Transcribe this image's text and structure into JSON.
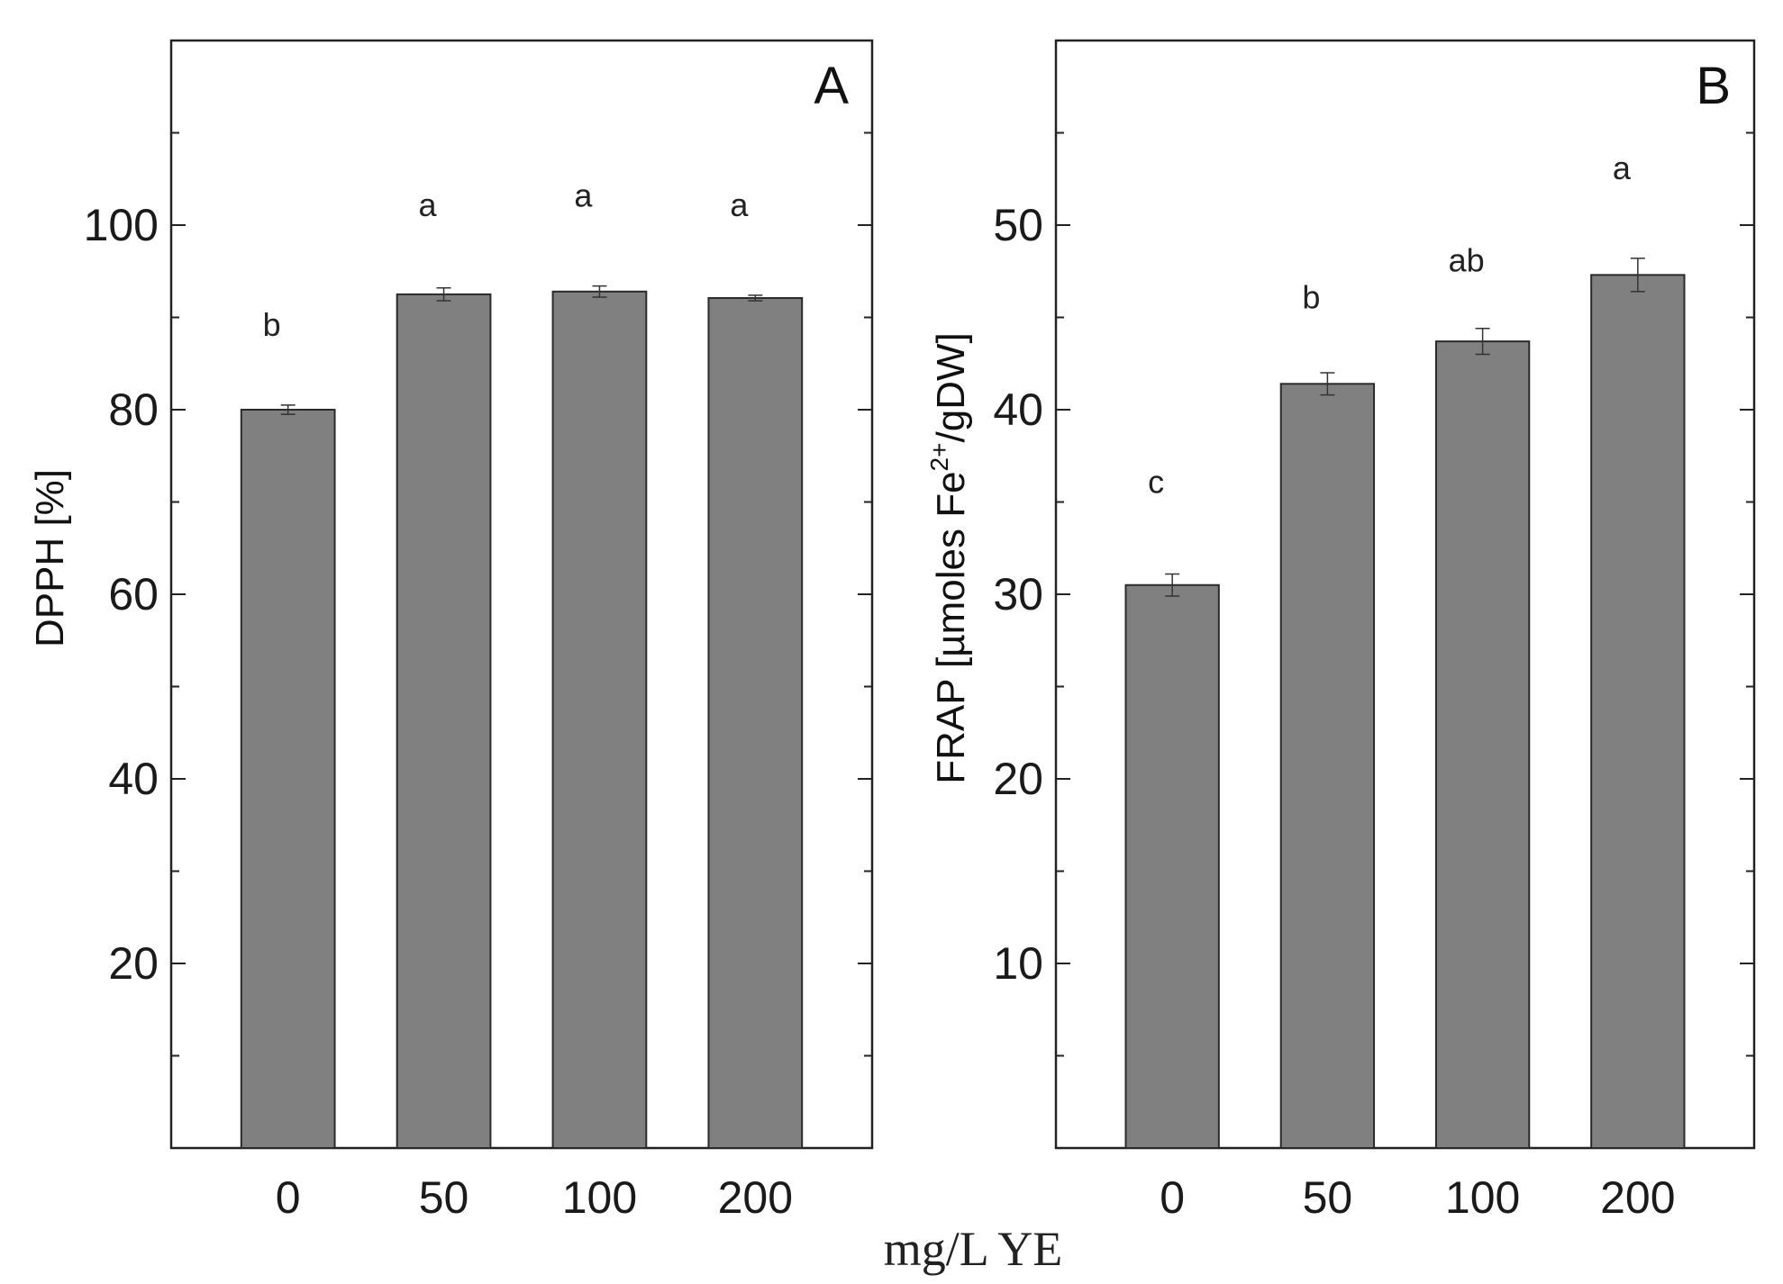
{
  "figure": {
    "shared_xlabel": "mg/L YE"
  },
  "chart_data": [
    {
      "type": "bar",
      "panel_label": "A",
      "categories": [
        "0",
        "50",
        "100",
        "200"
      ],
      "values": [
        80.0,
        92.5,
        92.8,
        92.1
      ],
      "errors": [
        0.5,
        0.7,
        0.6,
        0.3
      ],
      "significance": [
        "b",
        "a",
        "a",
        "a"
      ],
      "sig_positions": [
        88,
        101,
        102,
        101
      ],
      "ylabel": "DPPH [%]",
      "xlabel": "mg/L YE",
      "ylim": [
        0,
        120
      ],
      "yticks": [
        20,
        40,
        60,
        80,
        100
      ],
      "bar_color": "#808080",
      "grid": false
    },
    {
      "type": "bar",
      "panel_label": "B",
      "categories": [
        "0",
        "50",
        "100",
        "200"
      ],
      "values": [
        30.5,
        41.4,
        43.7,
        47.3
      ],
      "errors": [
        0.6,
        0.6,
        0.7,
        0.9
      ],
      "significance": [
        "c",
        "b",
        "ab",
        "a"
      ],
      "sig_positions": [
        35.5,
        45.5,
        47.5,
        52.5
      ],
      "ylabel_parts": {
        "prefix": "FRAP [µmoles Fe",
        "superscript": "2+",
        "suffix": "/gDW]"
      },
      "xlabel": "mg/L YE",
      "ylim": [
        0,
        60
      ],
      "yticks": [
        10,
        20,
        30,
        40,
        50
      ],
      "bar_color": "#808080",
      "grid": false
    }
  ]
}
